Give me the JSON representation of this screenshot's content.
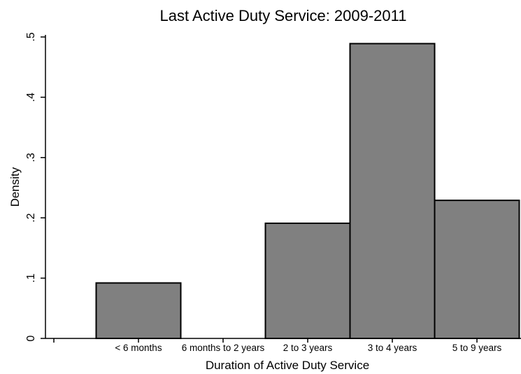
{
  "chart_data": {
    "type": "bar",
    "title": "Last Active Duty Service: 2009-2011",
    "xlabel": "Duration of Active Duty Service",
    "ylabel": "Density",
    "categories": [
      "",
      "< 6 months",
      "6 months to 2 years",
      "2 to 3 years",
      "3 to 4 years",
      "5 to 9 years"
    ],
    "values": [
      0,
      0.092,
      0,
      0.191,
      0.489,
      0.229
    ],
    "ylim": [
      0,
      0.5
    ],
    "yticks": [
      0,
      0.1,
      0.2,
      0.3,
      0.4,
      0.5
    ],
    "ytick_labels": [
      "0",
      ".1",
      ".2",
      ".3",
      ".4",
      ".5"
    ],
    "grid": false,
    "bar_color": "#808080",
    "bar_edge_color": "#000000"
  }
}
